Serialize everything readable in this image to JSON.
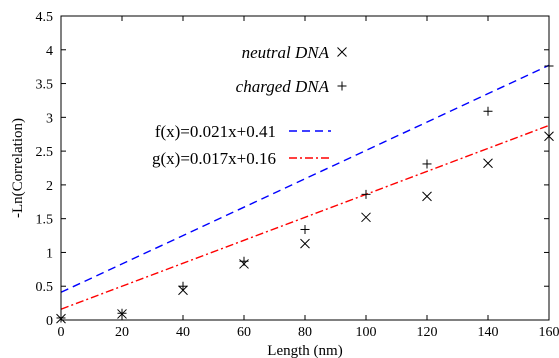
{
  "chart_data": {
    "type": "scatter",
    "xlabel": "Length (nm)",
    "ylabel": "-Ln(Correlation)",
    "xlim": [
      0,
      160
    ],
    "ylim": [
      0,
      4.5
    ],
    "x_ticks": [
      "0",
      "20",
      "40",
      "60",
      "80",
      "100",
      "120",
      "140",
      "160"
    ],
    "y_ticks": [
      "0",
      "0.5",
      "1",
      "1.5",
      "2",
      "2.5",
      "3",
      "3.5",
      "4",
      "4.5"
    ],
    "grid": false,
    "legend_position": "top-center",
    "series": [
      {
        "name": "neutral DNA",
        "marker": "x",
        "color": "#000000",
        "x": [
          0,
          20,
          40,
          60,
          80,
          100,
          120,
          140,
          160
        ],
        "y": [
          0.02,
          0.09,
          0.44,
          0.83,
          1.13,
          1.52,
          1.83,
          2.32,
          2.72
        ]
      },
      {
        "name": "charged DNA",
        "marker": "+",
        "color": "#000000",
        "x": [
          0,
          20,
          40,
          60,
          80,
          100,
          120,
          140,
          160
        ],
        "y": [
          0.03,
          0.1,
          0.5,
          0.87,
          1.34,
          1.86,
          2.31,
          3.09,
          3.76
        ]
      }
    ],
    "fits": [
      {
        "label": "f(x)=0.021x+0.41",
        "slope": 0.021,
        "intercept": 0.41,
        "color": "#0000ff",
        "dash": "8 5"
      },
      {
        "label": "g(x)=0.017x+0.16",
        "slope": 0.017,
        "intercept": 0.16,
        "color": "#ff0000",
        "dash": "8 3 2 3"
      }
    ]
  }
}
